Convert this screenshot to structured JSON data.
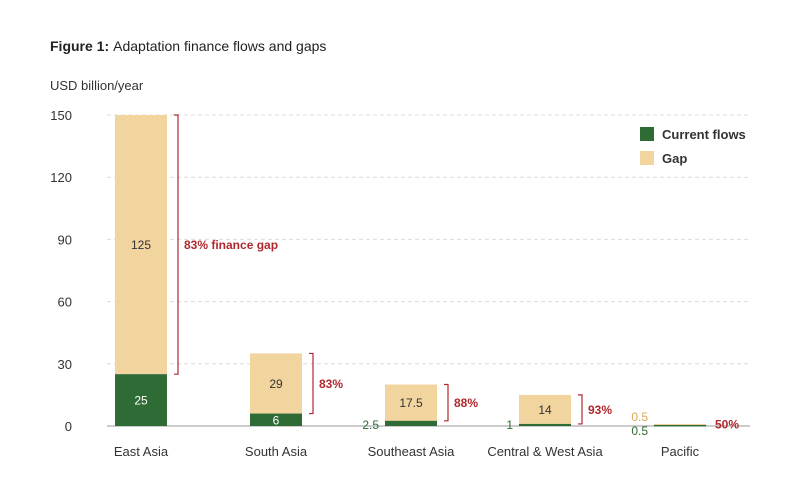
{
  "chart_data": {
    "type": "bar",
    "stacked": true,
    "title_bold": "Figure 1:",
    "title_rest": "Adaptation finance flows and gaps",
    "ylabel": "USD billion/year",
    "ylim": [
      0,
      150
    ],
    "yticks": [
      0,
      30,
      60,
      90,
      120,
      150
    ],
    "grid": true,
    "legend_position": "top-right",
    "categories": [
      "East Asia",
      "South Asia",
      "Southeast Asia",
      "Central & West Asia",
      "Pacific"
    ],
    "series": [
      {
        "name": "Current flows",
        "values": [
          25,
          6,
          2.5,
          1,
          0.5
        ],
        "labels": [
          "25",
          "6",
          "2.5",
          "1",
          "0.5"
        ],
        "color": "#2f6b35"
      },
      {
        "name": "Gap",
        "values": [
          125,
          29,
          17.5,
          14,
          0.5
        ],
        "labels": [
          "125",
          "29",
          "17.5",
          "14",
          "0.5"
        ],
        "color": "#f2d49e"
      }
    ],
    "gap_annotations": [
      "83% finance gap",
      "83%",
      "88%",
      "93%",
      "50%"
    ],
    "annotation_color": "#b0282e"
  }
}
